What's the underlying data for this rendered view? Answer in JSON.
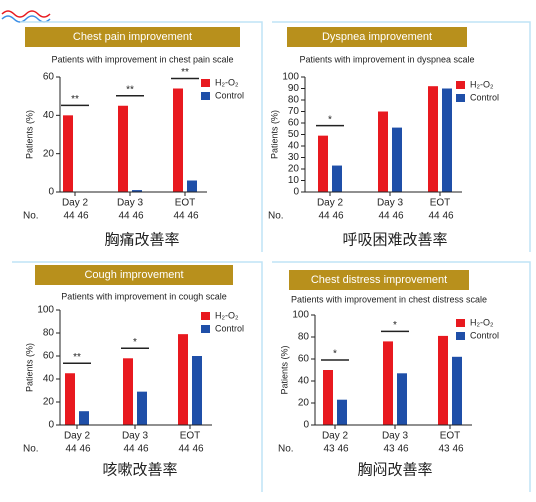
{
  "chart_data": [
    {
      "type": "bar",
      "title": "Chest pain improvement",
      "subtitle": "Patients with improvement in chest pain scale",
      "caption": "胸痛改善率",
      "y_label": "Patients (%)",
      "categories": [
        "Day 2",
        "Day 3",
        "EOT"
      ],
      "series": [
        {
          "name": "H₂-O₂",
          "color": "#e8191f",
          "values": [
            40,
            45,
            54
          ]
        },
        {
          "name": "Control",
          "color": "#1f4fa8",
          "values": [
            0,
            1,
            6
          ]
        }
      ],
      "ylim": [
        0,
        60
      ],
      "yticks": [
        0,
        20,
        40,
        60
      ],
      "significance": [
        "**",
        "**",
        "**"
      ],
      "n_label": "No.",
      "n": [
        [
          44,
          46
        ],
        [
          44,
          46
        ],
        [
          44,
          46
        ]
      ]
    },
    {
      "type": "bar",
      "title": "Dyspnea improvement",
      "subtitle": "Patients with improvement in dyspnea scale",
      "caption": "呼吸困难改善率",
      "y_label": "Patients (%)",
      "categories": [
        "Day 2",
        "Day 3",
        "EOT"
      ],
      "series": [
        {
          "name": "H₂-O₂",
          "color": "#e8191f",
          "values": [
            49,
            70,
            92
          ]
        },
        {
          "name": "Control",
          "color": "#1f4fa8",
          "values": [
            23,
            56,
            90
          ]
        }
      ],
      "ylim": [
        0,
        100
      ],
      "yticks": [
        0,
        10,
        20,
        30,
        40,
        50,
        60,
        70,
        80,
        90,
        100
      ],
      "significance": [
        "*",
        null,
        null
      ],
      "n_label": "No.",
      "n": [
        [
          44,
          46
        ],
        [
          44,
          46
        ],
        [
          44,
          46
        ]
      ]
    },
    {
      "type": "bar",
      "title": "Cough improvement",
      "subtitle": "Patients with improvement in cough scale",
      "caption": "咳嗽改善率",
      "y_label": "Patients (%)",
      "categories": [
        "Day 2",
        "Day 3",
        "EOT"
      ],
      "series": [
        {
          "name": "H₂-O₂",
          "color": "#e8191f",
          "values": [
            45,
            58,
            79
          ]
        },
        {
          "name": "Control",
          "color": "#1f4fa8",
          "values": [
            12,
            29,
            60
          ]
        }
      ],
      "ylim": [
        0,
        100
      ],
      "yticks": [
        0,
        20,
        40,
        60,
        80,
        100
      ],
      "significance": [
        "**",
        "*",
        null
      ],
      "n_label": "No.",
      "n": [
        [
          44,
          46
        ],
        [
          44,
          46
        ],
        [
          44,
          46
        ]
      ]
    },
    {
      "type": "bar",
      "title": "Chest distress improvement",
      "subtitle": "Patients with improvement in chest distress scale",
      "caption": "胸闷改善率",
      "y_label": "Patients (%)",
      "categories": [
        "Day 2",
        "Day 3",
        "EOT"
      ],
      "series": [
        {
          "name": "H₂-O₂",
          "color": "#e8191f",
          "values": [
            50,
            76,
            81
          ]
        },
        {
          "name": "Control",
          "color": "#1f4fa8",
          "values": [
            23,
            47,
            62
          ]
        }
      ],
      "ylim": [
        0,
        100
      ],
      "yticks": [
        0,
        20,
        40,
        60,
        80,
        100
      ],
      "significance": [
        "*",
        "*",
        null
      ],
      "n_label": "No.",
      "n": [
        [
          43,
          46
        ],
        [
          43,
          46
        ],
        [
          43,
          46
        ]
      ]
    }
  ]
}
